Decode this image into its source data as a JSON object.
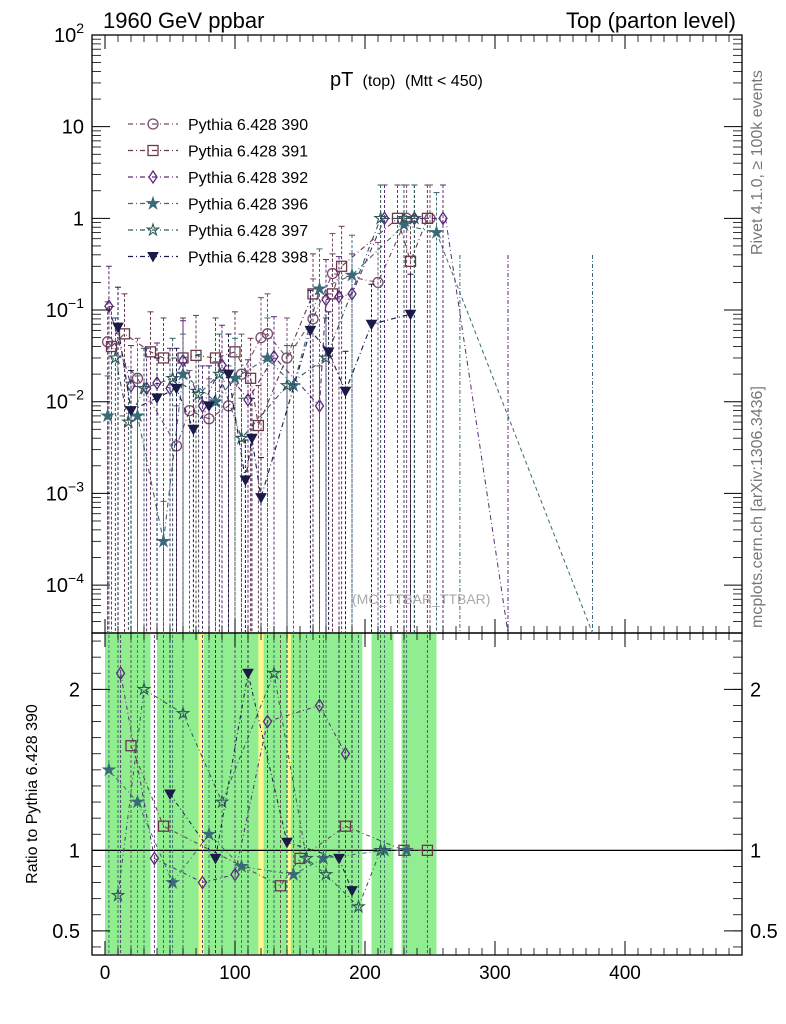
{
  "header": {
    "left": "1960 GeV ppbar",
    "right": "Top (parton level)"
  },
  "side_labels": {
    "rivet": "Rivet 4.1.0, ≥ 100k events",
    "mcplots": "mcplots.cern.ch [arXiv:1306.3436]"
  },
  "chart_data": {
    "type": "line",
    "title": "pT",
    "title_sub1": "(top)",
    "title_sub2": "(Mtt < 450)",
    "watermark": "(MC_TTBAR_TTBAR)",
    "xlabel": "",
    "ylabel": "",
    "ratio_ylabel": "Ratio to Pythia 6.428 390",
    "xlim": [
      -10,
      490
    ],
    "ylim": [
      3e-05,
      100
    ],
    "yscale": "log",
    "ratio_ylim": [
      0.35,
      2.35
    ],
    "x_ticks": [
      "0",
      "100",
      "200",
      "300",
      "400"
    ],
    "y_ticks": [
      "10^-4",
      "10^-3",
      "10^-2",
      "10^-1",
      "1",
      "10",
      "10^2"
    ],
    "ratio_ticks": [
      "0.5",
      "1",
      "2"
    ],
    "series": [
      {
        "name": "Pythia 6.428 390",
        "color": "#7b4a6e",
        "marker": "circle-open",
        "x": [
          2,
          25,
          55,
          65,
          80,
          95,
          105,
          120,
          125,
          140,
          160,
          175,
          210,
          232,
          250
        ],
        "y": [
          0.045,
          0.018,
          0.0033,
          0.008,
          0.0065,
          0.009,
          0.02,
          0.05,
          0.055,
          0.03,
          0.08,
          0.25,
          0.2,
          1.0,
          1.0
        ]
      },
      {
        "name": "Pythia 6.428 391",
        "color": "#6b3a4a",
        "marker": "square-open",
        "x": [
          5,
          15,
          35,
          45,
          60,
          70,
          85,
          100,
          112,
          118,
          160,
          175,
          182,
          225,
          235,
          248
        ],
        "y": [
          0.04,
          0.055,
          0.035,
          0.03,
          0.03,
          0.032,
          0.03,
          0.035,
          0.018,
          0.0055,
          0.15,
          0.15,
          0.3,
          1.0,
          0.34,
          1.0
        ]
      },
      {
        "name": "Pythia 6.428 392",
        "color": "#5a2a7a",
        "marker": "diamond-open",
        "x": [
          3,
          20,
          32,
          40,
          50,
          60,
          75,
          90,
          110,
          130,
          165,
          170,
          180,
          190,
          215,
          238,
          260
        ],
        "y": [
          0.11,
          0.015,
          0.014,
          0.016,
          0.014,
          0.028,
          0.009,
          0.025,
          0.0105,
          0.031,
          0.009,
          0.13,
          0.14,
          0.15,
          1.0,
          1.0,
          1.0
        ]
      },
      {
        "name": "Pythia 6.428 396",
        "color": "#3a6a78",
        "marker": "star",
        "x": [
          2,
          25,
          45,
          60,
          85,
          100,
          125,
          145,
          165,
          190,
          230,
          255
        ],
        "y": [
          0.007,
          0.007,
          0.0003,
          0.02,
          0.01,
          0.018,
          0.03,
          0.015,
          0.17,
          0.24,
          0.85,
          0.7
        ]
      },
      {
        "name": "Pythia 6.428 397",
        "color": "#2e5a5a",
        "marker": "star-open",
        "x": [
          8,
          18,
          30,
          52,
          72,
          88,
          105,
          140,
          170,
          212,
          230,
          238
        ],
        "y": [
          0.03,
          0.006,
          0.014,
          0.018,
          0.012,
          0.02,
          0.004,
          0.015,
          0.03,
          1.0,
          1.0,
          1.0
        ]
      },
      {
        "name": "Pythia 6.428 398",
        "color": "#1b1b4a",
        "marker": "triangle-down",
        "x": [
          10,
          20,
          40,
          55,
          68,
          80,
          95,
          108,
          113,
          120,
          158,
          172,
          185,
          205,
          235
        ],
        "y": [
          0.065,
          0.008,
          0.011,
          0.014,
          0.005,
          0.009,
          0.02,
          0.0014,
          0.004,
          0.0009,
          0.06,
          0.035,
          0.013,
          0.07,
          0.09
        ]
      }
    ],
    "ratio_series": [
      {
        "name": "Pythia 6.428 391",
        "x": [
          20,
          45,
          135,
          150,
          185,
          230,
          248
        ],
        "y": [
          1.65,
          1.15,
          0.78,
          0.95,
          1.15,
          1.0,
          1.0
        ]
      },
      {
        "name": "Pythia 6.428 392",
        "x": [
          12,
          38,
          75,
          100,
          125,
          165,
          185
        ],
        "y": [
          2.1,
          0.95,
          0.8,
          0.85,
          1.8,
          1.9,
          1.6
        ]
      },
      {
        "name": "Pythia 6.428 396",
        "x": [
          3,
          25,
          52,
          80,
          105,
          145,
          168,
          215,
          232
        ],
        "y": [
          1.5,
          1.3,
          0.8,
          1.1,
          0.9,
          0.85,
          0.95,
          1.0,
          1.0
        ]
      },
      {
        "name": "Pythia 6.428 397",
        "x": [
          10,
          30,
          60,
          90,
          130,
          155,
          170,
          195,
          212
        ],
        "y": [
          0.72,
          2.0,
          1.85,
          1.3,
          2.1,
          0.95,
          0.85,
          0.65,
          1.0
        ]
      },
      {
        "name": "Pythia 6.428 398",
        "x": [
          50,
          85,
          110,
          140,
          180,
          190
        ],
        "y": [
          1.35,
          0.95,
          2.1,
          1.05,
          0.95,
          0.75
        ]
      }
    ],
    "ratio_band_x": [
      0,
      255
    ]
  }
}
